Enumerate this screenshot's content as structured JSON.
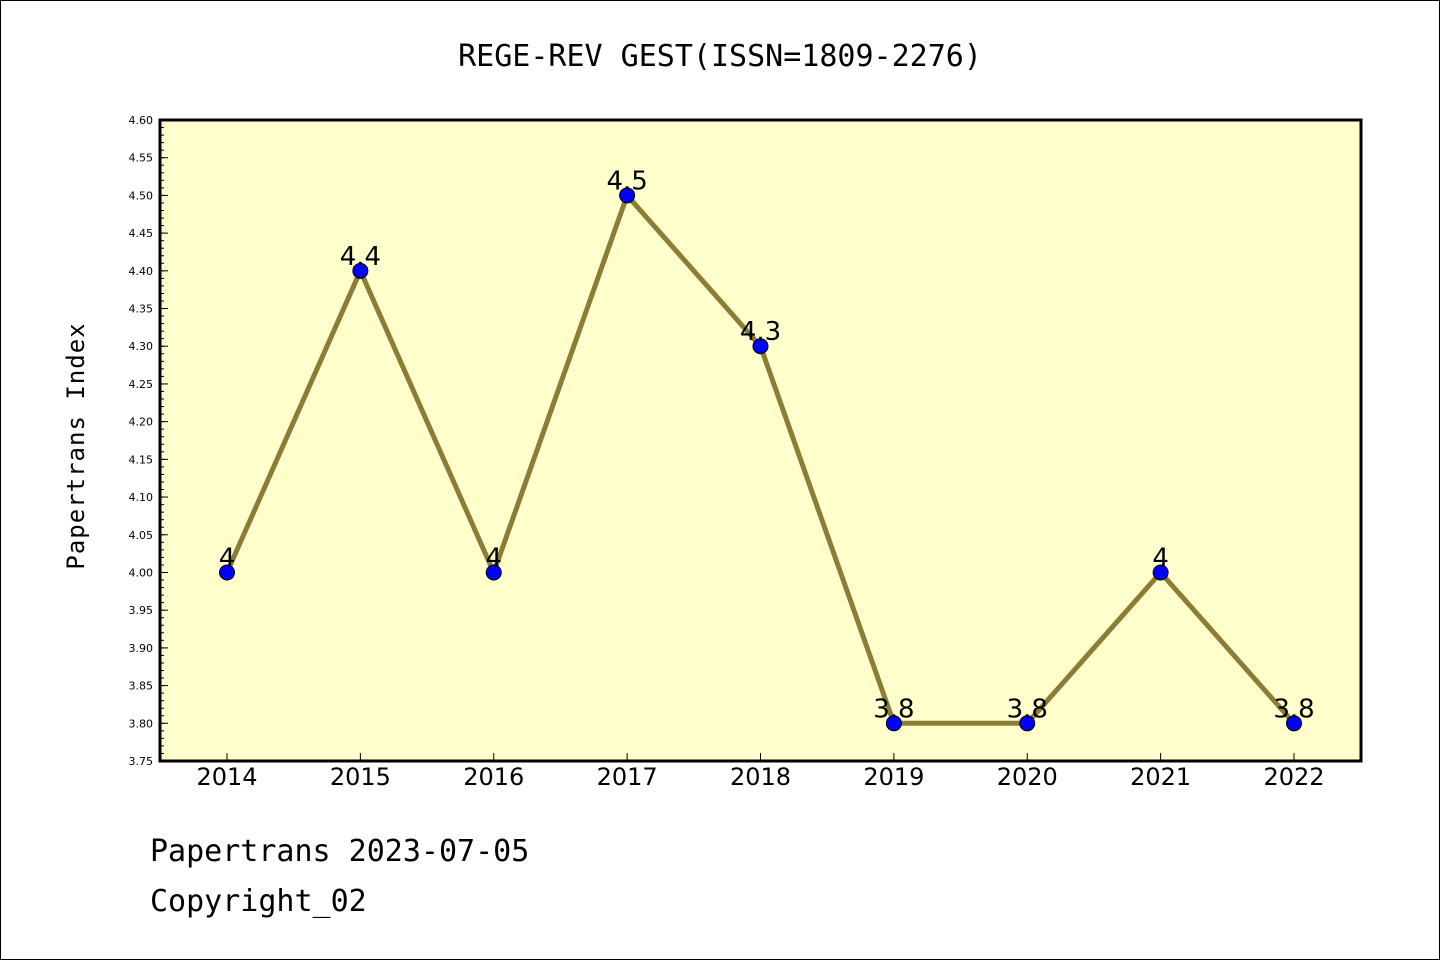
{
  "chart_data": {
    "type": "line",
    "title": "REGE-REV GEST(ISSN=1809-2276)",
    "xlabel": "",
    "ylabel": "Papertrans Index",
    "categories": [
      "2014",
      "2015",
      "2016",
      "2017",
      "2018",
      "2019",
      "2020",
      "2021",
      "2022"
    ],
    "series": [
      {
        "values": [
          4,
          4.4,
          4,
          4.5,
          4.3,
          3.8,
          3.8,
          4,
          3.8
        ],
        "data_labels": [
          "4",
          "4.4",
          "4",
          "4.5",
          "4.3",
          "3.8",
          "3.8",
          "4",
          "3.8"
        ]
      }
    ],
    "ylim": [
      3.75,
      4.6
    ],
    "yticks": [
      "3.75",
      "3.80",
      "3.85",
      "3.90",
      "3.95",
      "4.00",
      "4.05",
      "4.10",
      "4.15",
      "4.20",
      "4.25",
      "4.30",
      "4.35",
      "4.40",
      "4.45",
      "4.50",
      "4.55",
      "4.60"
    ],
    "grid": false,
    "legend": "none",
    "colors": {
      "plot_background": "#ffffcc",
      "line": "#8b7d35",
      "marker": "#0000ff",
      "marker_edge": "#000000"
    }
  },
  "footer": {
    "line1": "Papertrans 2023-07-05",
    "line2": "Copyright_02"
  }
}
